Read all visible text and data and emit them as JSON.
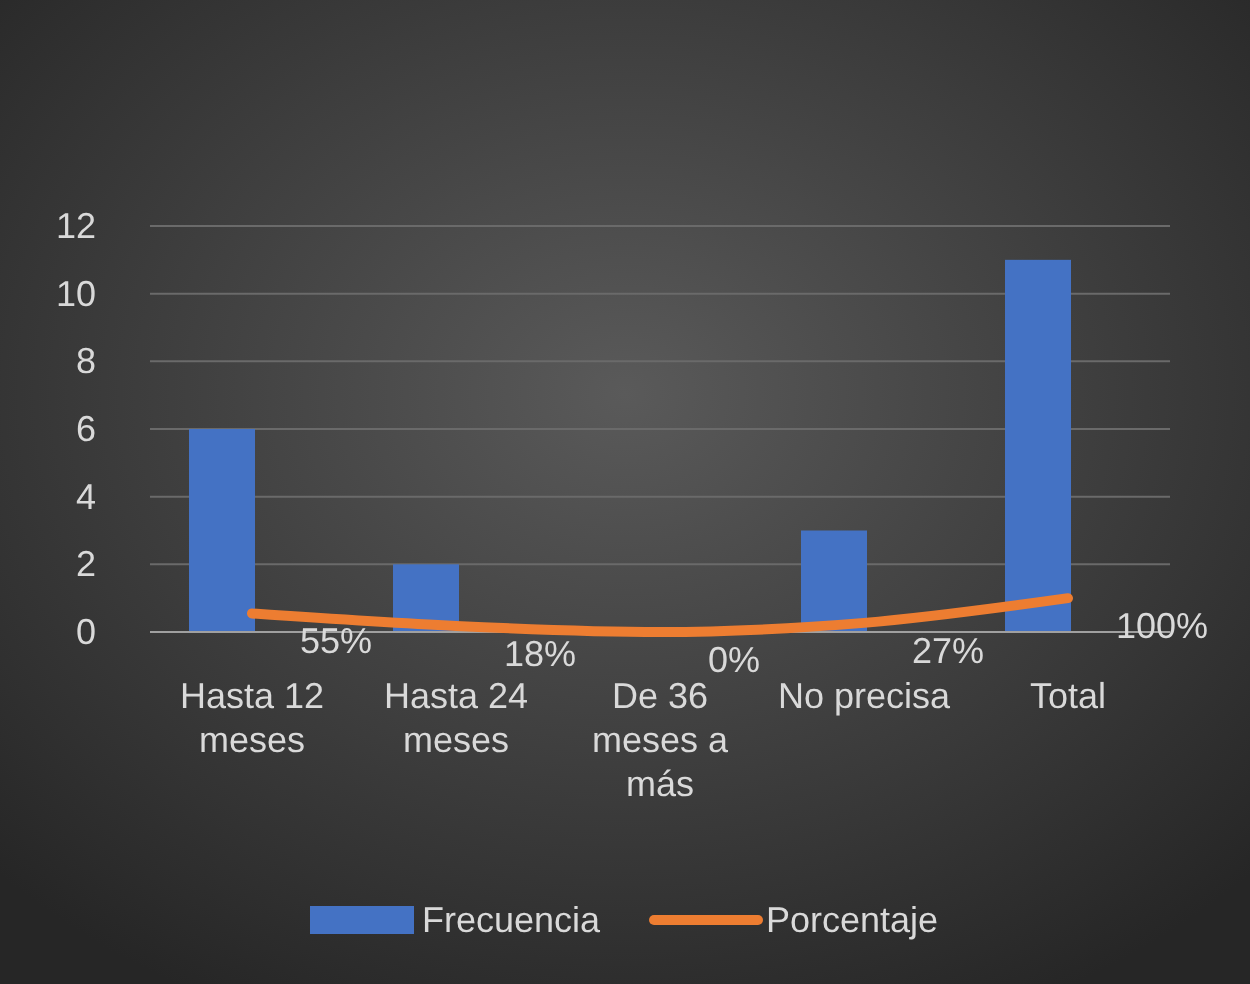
{
  "chart_data": {
    "type": "bar",
    "categories": [
      "Hasta 12 meses",
      "Hasta 24 meses",
      "De 36 meses a más",
      "No precisa",
      "Total"
    ],
    "series": [
      {
        "name": "Frecuencia",
        "color": "#4472c4",
        "values": [
          6,
          2,
          0,
          3,
          11
        ]
      },
      {
        "name": "Porcentaje",
        "type": "line",
        "color": "#ed7d31",
        "values": [
          0.55,
          0.18,
          0,
          0.27,
          1
        ],
        "value_labels": [
          "55%",
          "18%",
          "0%",
          "27%",
          "100%"
        ]
      }
    ],
    "ylim": [
      0,
      12
    ],
    "yticks": [
      0,
      2,
      4,
      6,
      8,
      10,
      12
    ],
    "grid": "y",
    "legend": "bottom",
    "marker": "none",
    "line_style": "solid"
  }
}
